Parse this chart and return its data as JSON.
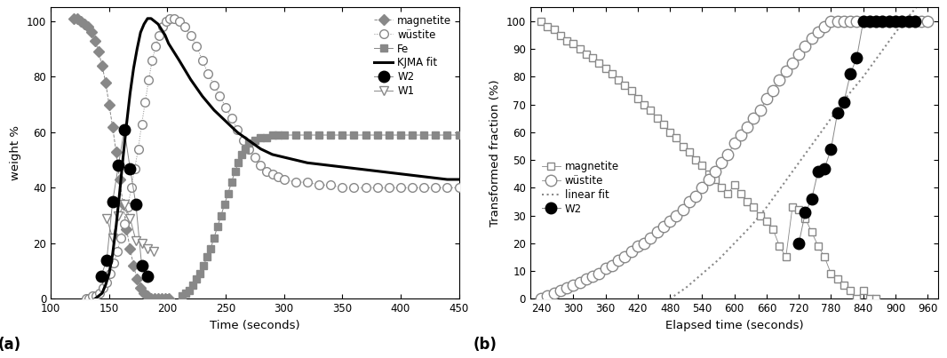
{
  "panel_a": {
    "magnetite_x": [
      120,
      123,
      126,
      129,
      132,
      135,
      138,
      141,
      144,
      147,
      150,
      153,
      156,
      159,
      162,
      165,
      168,
      171,
      174,
      177,
      180,
      183,
      186,
      189,
      192,
      195,
      198,
      201
    ],
    "magnetite_y": [
      101,
      101,
      100,
      99,
      98,
      96,
      93,
      89,
      84,
      78,
      70,
      62,
      53,
      43,
      34,
      25,
      18,
      12,
      7,
      4,
      2,
      1,
      0,
      0,
      0,
      0,
      0,
      0
    ],
    "wustite_x": [
      130,
      133,
      136,
      139,
      142,
      145,
      148,
      151,
      154,
      157,
      160,
      163,
      166,
      169,
      172,
      175,
      178,
      181,
      184,
      187,
      190,
      193,
      196,
      199,
      202,
      206,
      210,
      215,
      220,
      225,
      230,
      235,
      240,
      245,
      250,
      255,
      260,
      265,
      270,
      275,
      280,
      285,
      290,
      295,
      300,
      310,
      320,
      330,
      340,
      350,
      360,
      370,
      380,
      390,
      400,
      410,
      420,
      430,
      440,
      450
    ],
    "wustite_y": [
      0,
      0,
      1,
      1,
      2,
      4,
      6,
      9,
      13,
      17,
      22,
      27,
      33,
      40,
      47,
      54,
      63,
      71,
      79,
      86,
      91,
      95,
      98,
      100,
      101,
      101,
      100,
      98,
      95,
      91,
      86,
      81,
      77,
      73,
      69,
      65,
      61,
      57,
      54,
      51,
      48,
      46,
      45,
      44,
      43,
      42,
      42,
      41,
      41,
      40,
      40,
      40,
      40,
      40,
      40,
      40,
      40,
      40,
      40,
      40
    ],
    "fe_x": [
      213,
      216,
      219,
      222,
      225,
      228,
      231,
      234,
      237,
      240,
      243,
      246,
      249,
      252,
      255,
      258,
      261,
      264,
      267,
      270,
      275,
      280,
      285,
      290,
      295,
      300,
      310,
      320,
      330,
      340,
      350,
      360,
      370,
      380,
      390,
      400,
      410,
      420,
      430,
      440,
      450
    ],
    "fe_y": [
      1,
      2,
      3,
      5,
      7,
      9,
      12,
      15,
      18,
      22,
      26,
      30,
      34,
      38,
      42,
      46,
      49,
      52,
      54,
      56,
      57,
      58,
      58,
      59,
      59,
      59,
      59,
      59,
      59,
      59,
      59,
      59,
      59,
      59,
      59,
      59,
      59,
      59,
      59,
      59,
      59
    ],
    "kjma_rise_x": [
      138,
      141,
      144,
      147,
      150,
      153,
      156,
      159,
      162,
      165,
      168,
      171,
      174,
      177,
      180,
      183,
      186,
      189,
      192,
      195,
      198,
      201
    ],
    "kjma_rise_y": [
      0,
      1,
      2,
      5,
      9,
      16,
      26,
      38,
      51,
      63,
      74,
      83,
      90,
      96,
      99,
      101,
      101,
      100,
      99,
      97,
      95,
      92
    ],
    "kjma_fall_x": [
      201,
      210,
      220,
      230,
      240,
      250,
      260,
      270,
      280,
      290,
      300,
      320,
      340,
      360,
      380,
      400,
      420,
      440,
      450
    ],
    "kjma_fall_y": [
      92,
      86,
      79,
      73,
      68,
      64,
      60,
      57,
      54,
      52,
      51,
      49,
      48,
      47,
      46,
      45,
      44,
      43,
      43
    ],
    "W2_x": [
      143,
      148,
      153,
      158,
      163,
      168,
      173,
      178,
      183
    ],
    "W2_y": [
      8,
      14,
      35,
      48,
      61,
      47,
      34,
      12,
      8
    ],
    "W1_x": [
      148,
      153,
      158,
      163,
      168,
      173,
      178,
      183,
      188
    ],
    "W1_y": [
      29,
      22,
      30,
      34,
      29,
      21,
      20,
      18,
      17
    ],
    "xlabel": "Time (seconds)",
    "ylabel": "weight %",
    "xlim": [
      100,
      450
    ],
    "ylim": [
      0,
      105
    ],
    "xticks": [
      100,
      150,
      200,
      250,
      300,
      350,
      400,
      450
    ],
    "yticks": [
      0,
      20,
      40,
      60,
      80,
      100
    ]
  },
  "panel_b": {
    "magnetite_x": [
      240,
      252,
      264,
      276,
      288,
      300,
      312,
      324,
      336,
      348,
      360,
      372,
      384,
      396,
      408,
      420,
      432,
      444,
      456,
      468,
      480,
      492,
      504,
      516,
      528,
      540,
      552,
      564,
      576,
      588,
      600,
      612,
      624,
      636,
      648,
      660,
      672,
      684,
      696,
      708,
      720,
      732,
      744,
      756,
      768,
      780,
      792,
      804,
      816,
      828,
      840,
      852,
      864
    ],
    "magnetite_y": [
      100,
      98,
      97,
      95,
      93,
      92,
      90,
      88,
      87,
      85,
      83,
      81,
      79,
      77,
      75,
      72,
      70,
      68,
      65,
      63,
      60,
      58,
      55,
      53,
      50,
      48,
      45,
      43,
      40,
      38,
      41,
      38,
      35,
      33,
      30,
      28,
      25,
      19,
      15,
      33,
      32,
      29,
      24,
      19,
      15,
      9,
      7,
      5,
      3,
      0,
      3,
      0,
      0
    ],
    "wustite_x": [
      240,
      252,
      264,
      276,
      288,
      300,
      312,
      324,
      336,
      348,
      360,
      372,
      384,
      396,
      408,
      420,
      432,
      444,
      456,
      468,
      480,
      492,
      504,
      516,
      528,
      540,
      552,
      564,
      576,
      588,
      600,
      612,
      624,
      636,
      648,
      660,
      672,
      684,
      696,
      708,
      720,
      732,
      744,
      756,
      768,
      780,
      792,
      804,
      816,
      828,
      840,
      852,
      864,
      876,
      888,
      900,
      912,
      924,
      936,
      948,
      960
    ],
    "wustite_y": [
      0,
      1,
      2,
      3,
      4,
      5,
      6,
      7,
      8,
      9,
      11,
      12,
      14,
      15,
      17,
      19,
      20,
      22,
      24,
      26,
      28,
      30,
      32,
      35,
      37,
      40,
      43,
      46,
      49,
      52,
      56,
      59,
      62,
      65,
      68,
      72,
      75,
      79,
      82,
      85,
      88,
      91,
      94,
      96,
      98,
      100,
      100,
      100,
      100,
      100,
      100,
      100,
      100,
      100,
      100,
      100,
      100,
      100,
      100,
      100,
      100
    ],
    "linear_fit_x": [
      480,
      510,
      540,
      570,
      600,
      630,
      660,
      690,
      720,
      750,
      780,
      810,
      840,
      870,
      900,
      930,
      960
    ],
    "linear_fit_y": [
      0,
      4,
      9,
      14,
      20,
      26,
      33,
      41,
      49,
      57,
      65,
      73,
      80,
      88,
      96,
      103,
      110
    ],
    "W2_x": [
      720,
      732,
      744,
      756,
      768,
      780,
      792,
      804,
      816,
      828,
      840,
      852,
      864,
      876,
      888,
      900,
      912,
      924,
      936
    ],
    "W2_y": [
      20,
      31,
      36,
      46,
      47,
      54,
      67,
      71,
      81,
      87,
      100,
      100,
      100,
      100,
      100,
      100,
      100,
      100,
      100
    ],
    "xlabel": "Elapsed time (seconds)",
    "ylabel": "Transformed fraction (%)",
    "xlim": [
      220,
      980
    ],
    "ylim": [
      0,
      105
    ],
    "xticks": [
      240,
      300,
      360,
      420,
      480,
      540,
      600,
      660,
      720,
      780,
      840,
      900,
      960
    ],
    "yticks": [
      0,
      10,
      20,
      30,
      40,
      50,
      60,
      70,
      80,
      90,
      100
    ]
  },
  "gray": "#888888",
  "midgray": "#999999"
}
